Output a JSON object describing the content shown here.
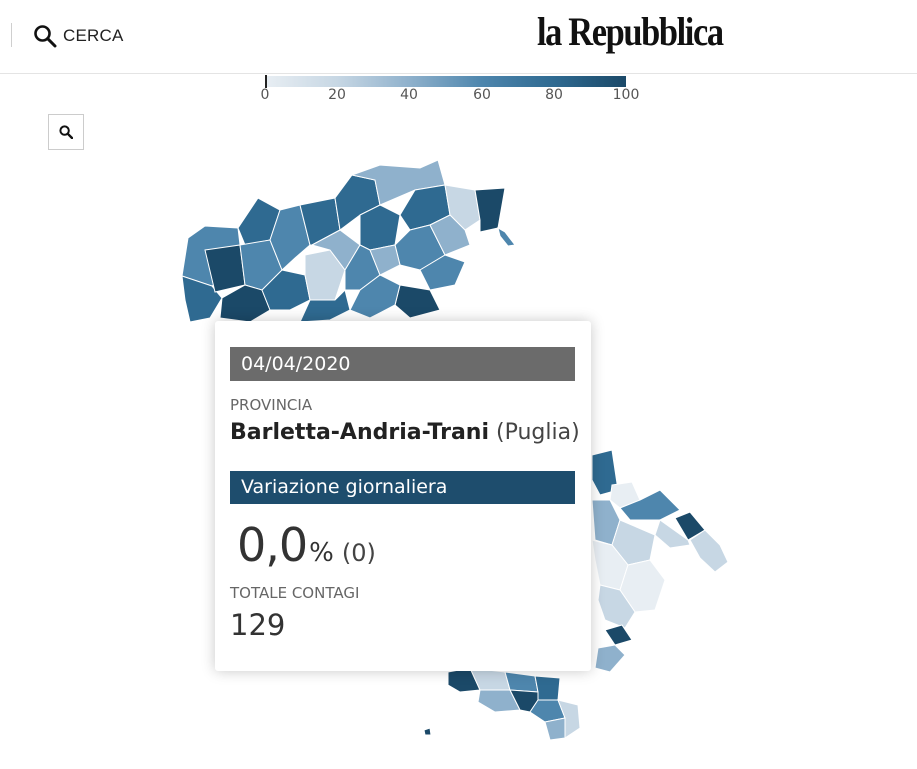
{
  "header": {
    "search_label": "CERCA",
    "logo": "la Repubblica",
    "search_icon": "search-icon"
  },
  "legend": {
    "ticks": [
      "0",
      "20",
      "40",
      "60",
      "80",
      "100"
    ],
    "colors": [
      "#e8eef3",
      "#c7d7e4",
      "#8fb1cc",
      "#4e86ad",
      "#2f6a91",
      "#1b4968"
    ]
  },
  "map_search_icon": "search-icon",
  "tooltip": {
    "date": "04/04/2020",
    "kind": "PROVINCIA",
    "province": "Barletta-Andria-Trani",
    "region": "(Puglia)",
    "section": "Variazione giornaliera",
    "pct_value": "0,0",
    "pct_unit": "%",
    "abs_value": "(0)",
    "total_label": "TOTALE CONTAGI",
    "total_value": "129"
  }
}
